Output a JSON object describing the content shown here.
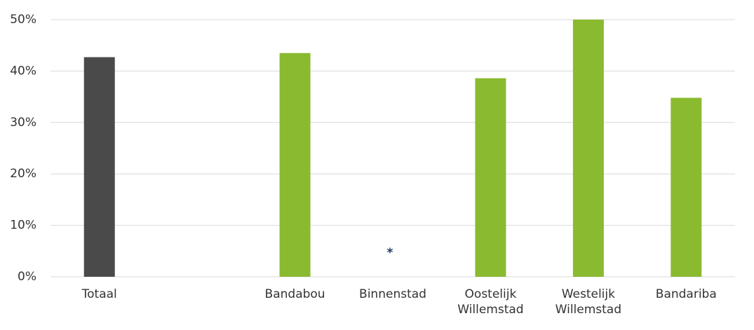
{
  "chart_data": {
    "type": "bar",
    "categories": [
      "Totaal",
      null,
      "Bandabou",
      "Binnenstad",
      "Oostelijk Willemstad",
      "Westelijk Willemstad",
      "Bandariba"
    ],
    "values": [
      42.7,
      null,
      43.5,
      null,
      38.6,
      50,
      34.8
    ],
    "value_labels": [
      null,
      null,
      null,
      "*",
      null,
      null,
      null
    ],
    "colors": [
      "#4a4a4a",
      "#8aba2f",
      "#8aba2f",
      "#8aba2f",
      "#8aba2f",
      "#8aba2f",
      "#8aba2f"
    ],
    "ylim": [
      0,
      50
    ],
    "yticks": [
      {
        "value": 0,
        "label": "0%"
      },
      {
        "value": 10,
        "label": "10%"
      },
      {
        "value": 20,
        "label": "20%"
      },
      {
        "value": 30,
        "label": "30%"
      },
      {
        "value": 40,
        "label": "40%"
      },
      {
        "value": 50,
        "label": "50%"
      }
    ],
    "grid": true
  }
}
